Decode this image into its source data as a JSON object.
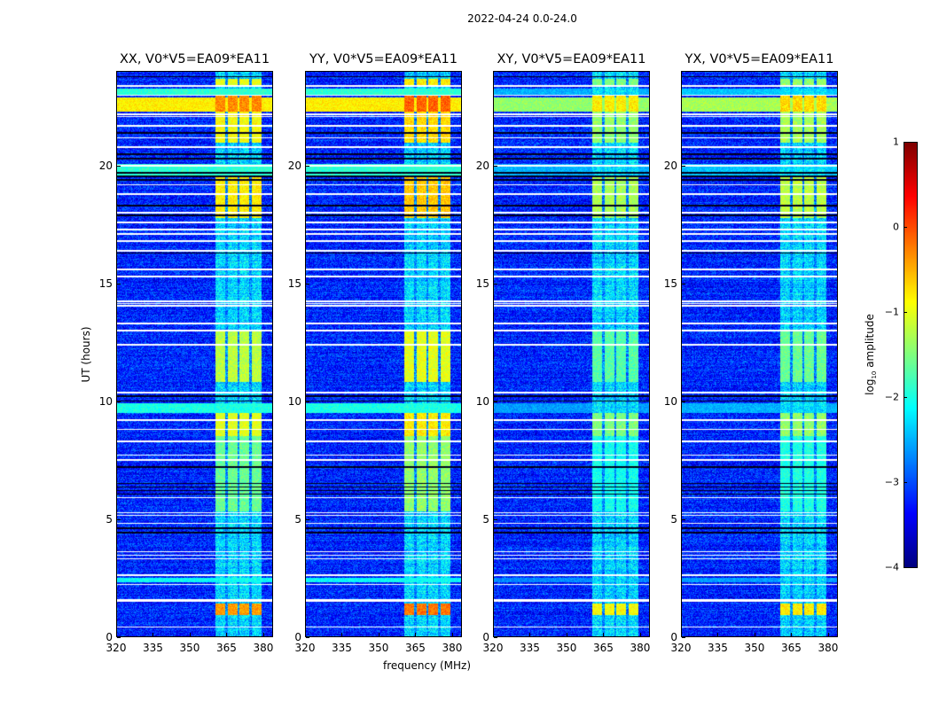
{
  "chart_data": {
    "type": "heatmap",
    "title": "2022-04-24 0.0-24.0",
    "xlabel": "frequency (MHz)",
    "ylabel": "UT (hours)",
    "xlim": [
      320,
      384
    ],
    "ylim": [
      0,
      24
    ],
    "xticks": [
      320,
      335,
      350,
      365,
      380
    ],
    "yticks": [
      0,
      5,
      10,
      15,
      20
    ],
    "colorbar": {
      "label_main": "log",
      "label_sub": "10",
      "label_rest": " amplitude",
      "range": [
        -4,
        1
      ],
      "ticks": [
        1,
        0,
        -1,
        -2,
        -3,
        -4
      ],
      "tick_labels": [
        "1",
        "0",
        "−1",
        "−2",
        "−3",
        "−4"
      ],
      "colormap": "jet"
    },
    "background_level": -3.2,
    "subbands_mhz": [
      [
        360.5,
        364.8
      ],
      [
        365.6,
        369.6
      ],
      [
        370.6,
        374.6
      ],
      [
        375.5,
        379.5
      ]
    ],
    "band_events": [
      {
        "t": [
          0.9,
          1.4
        ],
        "level": -0.4
      },
      {
        "t": [
          5.3,
          8.5
        ],
        "level": -1.6
      },
      {
        "t": [
          8.5,
          9.5
        ],
        "level": -1.0
      },
      {
        "t": [
          10.8,
          13.0
        ],
        "level": -1.2
      },
      {
        "t": [
          17.8,
          19.6
        ],
        "level": -0.8
      },
      {
        "t": [
          21.0,
          22.3
        ],
        "level": -0.9
      },
      {
        "t": [
          22.3,
          23.0
        ],
        "level": -0.3
      },
      {
        "t": [
          23.4,
          23.7
        ],
        "level": -1.0
      }
    ],
    "broadband_events": [
      {
        "t": [
          22.3,
          22.9
        ],
        "level": -0.8
      },
      {
        "t": [
          23.0,
          23.3
        ],
        "level": -1.9
      },
      {
        "t": [
          19.6,
          20.1
        ],
        "level": -1.9
      },
      {
        "t": [
          9.5,
          9.9
        ],
        "level": -2.0
      },
      {
        "t": [
          2.3,
          2.5
        ],
        "level": -2.1
      }
    ],
    "flagged_rows_hours": [
      0.4,
      1.5,
      1.55,
      2.2,
      2.6,
      3.3,
      3.45,
      3.6,
      4.8,
      5.15,
      5.25,
      5.9,
      7.5,
      7.7,
      8.3,
      8.8,
      9.2,
      10.35,
      12.4,
      13.0,
      13.3,
      14.05,
      14.15,
      14.25,
      15.3,
      15.6,
      16.4,
      16.8,
      17.1,
      17.3,
      17.6,
      18.0,
      18.8,
      19.2,
      20.0,
      20.8,
      21.2,
      21.7,
      22.1,
      22.2,
      23.0,
      23.4
    ],
    "low_rows_hours": [
      4.4,
      4.6,
      6.05,
      6.2,
      6.35,
      6.5,
      7.2,
      10.0,
      10.2,
      16.3,
      17.9,
      18.3,
      19.4,
      19.55,
      19.7,
      20.3,
      20.5,
      21.4,
      23.8
    ],
    "panels": [
      {
        "title": "XX, V0*V5=EA09*EA11",
        "band_offset": 0.0,
        "broadband_offset": 0.0
      },
      {
        "title": "YY, V0*V5=EA09*EA11",
        "band_offset": 0.2,
        "broadband_offset": 0.0
      },
      {
        "title": "XY, V0*V5=EA09*EA11",
        "band_offset": -0.5,
        "broadband_offset": -0.6
      },
      {
        "title": "YX, V0*V5=EA09*EA11",
        "band_offset": -0.4,
        "broadband_offset": -0.5
      }
    ]
  }
}
